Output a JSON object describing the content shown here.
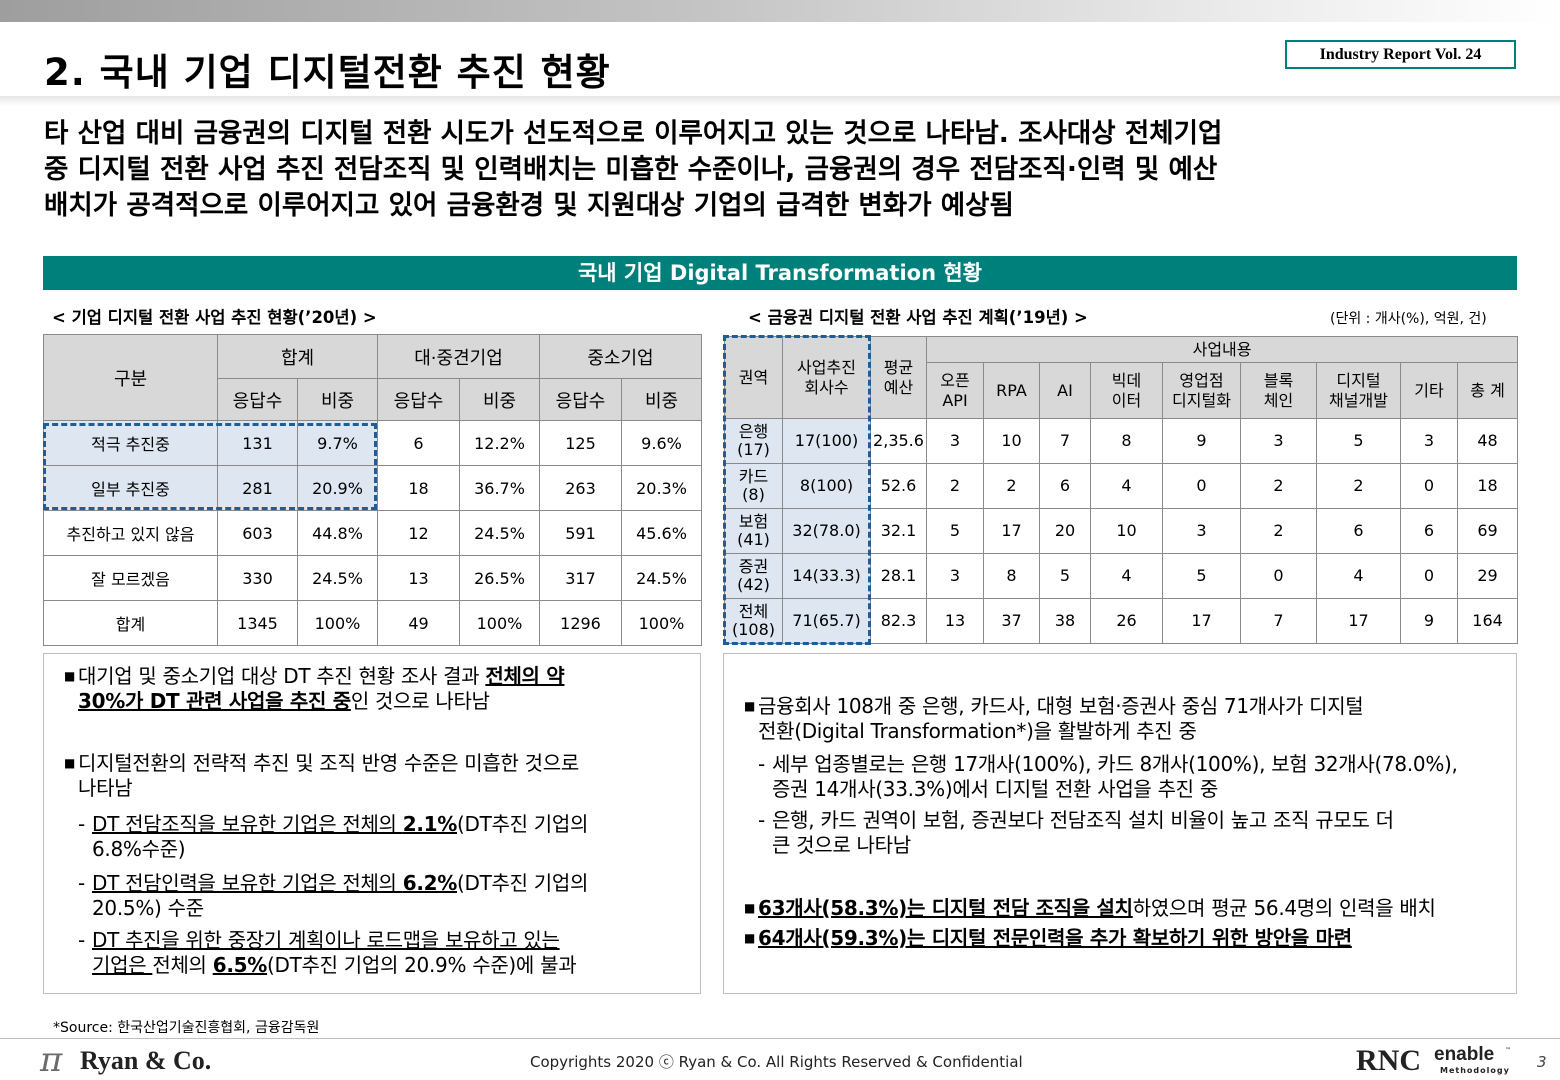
{
  "header": {
    "title": "2. 국내 기업 디지털전환 추진 현황",
    "report_tag": "Industry Report Vol. 24"
  },
  "summary_lines": [
    "타 산업 대비 금융권의 디지털 전환 시도가 선도적으로 이루어지고 있는 것으로 나타남. 조사대상 전체기업",
    "중 디지털 전환 사업 추진 전담조직 및 인력배치는 미흡한 수준이나, 금융권의 경우 전담조직·인력 및 예산",
    "배치가 공격적으로 이루어지고 있어 금융환경 및 지원대상 기업의 급격한 변화가 예상됨"
  ],
  "section_title": "국내 기업 Digital Transformation 현황",
  "left_table": {
    "caption": "< 기업 디지털 전환 사업 추진 현황(’20년) >",
    "corner": "구분",
    "groups": [
      "합계",
      "대·중견기업",
      "중소기업"
    ],
    "subheaders": [
      "응답수",
      "비중",
      "응답수",
      "비중",
      "응답수",
      "비중"
    ],
    "rows": [
      {
        "label": "적극 추진중",
        "cells": [
          "131",
          "9.7%",
          "6",
          "12.2%",
          "125",
          "9.6%"
        ]
      },
      {
        "label": "일부 추진중",
        "cells": [
          "281",
          "20.9%",
          "18",
          "36.7%",
          "263",
          "20.3%"
        ]
      },
      {
        "label": "추진하고 있지 않음",
        "cells": [
          "603",
          "44.8%",
          "12",
          "24.5%",
          "591",
          "45.6%"
        ]
      },
      {
        "label": "잘 모르겠음",
        "cells": [
          "330",
          "24.5%",
          "13",
          "26.5%",
          "317",
          "24.5%"
        ]
      },
      {
        "label": "합계",
        "cells": [
          "1345",
          "100%",
          "49",
          "100%",
          "1296",
          "100%"
        ]
      }
    ]
  },
  "right_table": {
    "caption": "< 금융권 디지털 전환 사업 추진 계획(’19년) >",
    "unit": "(단위 : 개사(%), 억원, 건)",
    "h_region": "권역",
    "h_companies": [
      "사업추진",
      "회사수"
    ],
    "h_budget": [
      "평균",
      "예산"
    ],
    "h_group": "사업내용",
    "h_items": [
      [
        "오픈",
        "API"
      ],
      [
        "RPA"
      ],
      [
        "AI"
      ],
      [
        "빅데",
        "이터"
      ],
      [
        "영업점",
        "디지털화"
      ],
      [
        "블록",
        "체인"
      ],
      [
        "디지털",
        "채널개발"
      ],
      [
        "기타"
      ],
      [
        "총 계"
      ]
    ],
    "rows": [
      {
        "region": "은행",
        "count": "(17)",
        "companies": "17(100)",
        "budget": "2,35.6",
        "items": [
          "3",
          "10",
          "7",
          "8",
          "9",
          "3",
          "5",
          "3",
          "48"
        ]
      },
      {
        "region": "카드",
        "count": "(8)",
        "companies": "8(100)",
        "budget": "52.6",
        "items": [
          "2",
          "2",
          "6",
          "4",
          "0",
          "2",
          "2",
          "0",
          "18"
        ]
      },
      {
        "region": "보험",
        "count": "(41)",
        "companies": "32(78.0)",
        "budget": "32.1",
        "items": [
          "5",
          "17",
          "20",
          "10",
          "3",
          "2",
          "6",
          "6",
          "69"
        ]
      },
      {
        "region": "증권",
        "count": "(42)",
        "companies": "14(33.3)",
        "budget": "28.1",
        "items": [
          "3",
          "8",
          "5",
          "4",
          "5",
          "0",
          "4",
          "0",
          "29"
        ]
      },
      {
        "region": "전체",
        "count": "(108)",
        "companies": "71(65.7)",
        "budget": "82.3",
        "items": [
          "13",
          "37",
          "38",
          "26",
          "17",
          "7",
          "17",
          "9",
          "164"
        ]
      }
    ]
  },
  "left_notes": {
    "b1_pre": "대기업 및 중소기업 대상 DT 추진 현황 조사 결과 ",
    "b1_bold_1": "전체의 약",
    "b1_bold_2": "30%가 DT 관련 사업을 추진 중",
    "b1_post": "인 것으로 나타남",
    "b2_line1": "디지털전환의 전략적 추진 및 조직 반영 수준은 미흡한 것으로",
    "b2_line2": "나타남",
    "s1_u": "DT 전담조직을 보유한 기업은 전체의 ",
    "s1_b": "2.1%",
    "s1_post": "(DT추진 기업의",
    "s1_line2": "6.8%수준)",
    "s2_u": "DT 전담인력을 보유한 기업은 전체의 ",
    "s2_b": "6.2%",
    "s2_post": "(DT추진 기업의",
    "s2_line2": "20.5%) 수준",
    "s3_u1": "DT 추진을 위한 중장기 계획이나 로드맵을 보유하고 있는",
    "s3_u2": "기업은 ",
    "s3_mid": "전체의 ",
    "s3_b": "6.5%",
    "s3_post": "(DT추진 기업의 20.9% 수준)에 불과"
  },
  "right_notes": {
    "b1_line1": "금융회사 108개 중 은행, 카드사, 대형 보험·증권사 중심 71개사가 디지털",
    "b1_line2": "전환(Digital Transformation*)을 활발하게 추진 중",
    "s1_line1": "세부 업종별로는 은행 17개사(100%), 카드 8개사(100%), 보험 32개사(78.0%),",
    "s1_line2": "증권 14개사(33.3%)에서 디지털 전환 사업을 추진 중",
    "s2_line1": "은행, 카드 권역이 보험, 증권보다 전담조직 설치 비율이 높고 조직 규모도 더",
    "s2_line2": "큰 것으로 나타남",
    "b2_bold": "63개사(58.3%)는 디지털 전담 조직을 설치",
    "b2_post": "하였으며 평균 56.4명의 인력을 배치",
    "b3_bold": "64개사(59.3%)는 디지털 전문인력을 추가 확보하기 위한 방안을 마련"
  },
  "footer": {
    "source": "*Source: 한국산업기술진흥협회, 금융감독원",
    "copyright": "Copyrights 2020 ⓒ Ryan & Co. All Rights Reserved & Confidential",
    "logo_left_symbol": "π",
    "logo_left_text": "Ryan & Co.",
    "logo_right_rnc": "RNC",
    "logo_right_enable": "enable",
    "logo_right_methodology": "Methodology",
    "logo_right_tm": "™",
    "page_number": "3"
  }
}
